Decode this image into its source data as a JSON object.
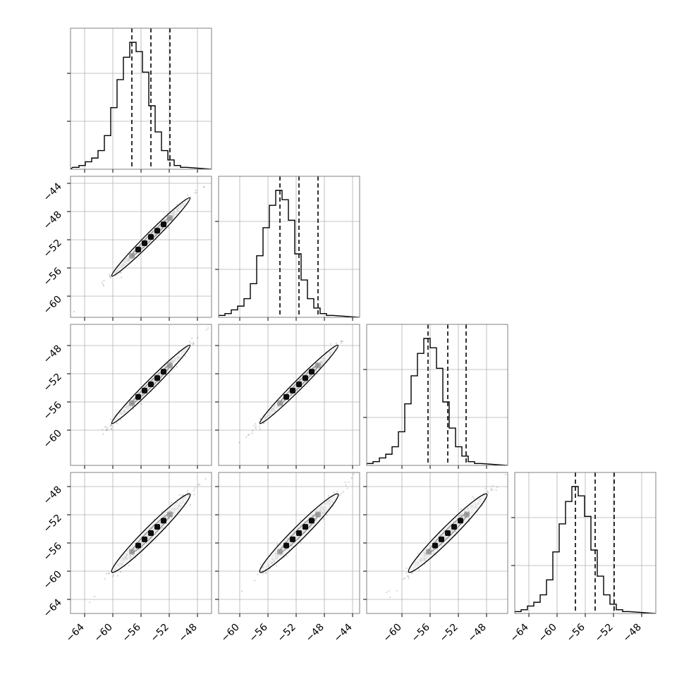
{
  "chart_data": {
    "type": "corner",
    "parameters": 4,
    "grid": true,
    "histograms": [
      {
        "index": 0,
        "quantiles": [
          -57.3,
          -54.6,
          -51.9
        ],
        "bin_edges_start": -65.7,
        "bin_width": 0.9,
        "counts": [
          1,
          2,
          4,
          6,
          10,
          18,
          33,
          48,
          60,
          68,
          63,
          52,
          34,
          20,
          10,
          5,
          2,
          1
        ]
      },
      {
        "index": 1,
        "quantiles": [
          -54.3,
          -51.6,
          -48.9
        ],
        "bin_edges_start": -63.0,
        "bin_width": 0.9,
        "counts": [
          1,
          2,
          4,
          6,
          10,
          18,
          33,
          48,
          60,
          68,
          63,
          52,
          34,
          20,
          10,
          5,
          2,
          1
        ]
      },
      {
        "index": 2,
        "quantiles": [
          -56.3,
          -53.5,
          -50.9
        ],
        "bin_edges_start": -65.0,
        "bin_width": 0.9,
        "counts": [
          1,
          2,
          4,
          6,
          10,
          18,
          33,
          48,
          60,
          68,
          63,
          52,
          34,
          20,
          10,
          5,
          2,
          1
        ]
      },
      {
        "index": 3,
        "quantiles": [
          -57.4,
          -54.6,
          -51.9
        ],
        "bin_edges_start": -66.0,
        "bin_width": 0.9,
        "counts": [
          1,
          2,
          4,
          6,
          10,
          18,
          33,
          48,
          60,
          68,
          63,
          52,
          34,
          20,
          10,
          5,
          2,
          1
        ]
      }
    ],
    "ranges": [
      [
        -66,
        -46
      ],
      [
        -63,
        -43
      ],
      [
        -65,
        -45
      ],
      [
        -66,
        -46
      ]
    ],
    "x_ticks": [
      [
        "−64",
        "−60",
        "−56",
        "−52",
        "−48"
      ],
      [
        "−60",
        "−56",
        "−52",
        "−48",
        "−44"
      ],
      [
        "−60",
        "−56",
        "−52",
        "−48"
      ],
      [
        "−64",
        "−60",
        "−56",
        "−52",
        "−48"
      ]
    ],
    "x_tick_values": [
      [
        -64,
        -60,
        -56,
        -52,
        -48
      ],
      [
        -60,
        -56,
        -52,
        -48,
        -44
      ],
      [
        -60,
        -56,
        -52,
        -48
      ],
      [
        -64,
        -60,
        -56,
        -52,
        -48
      ]
    ],
    "y_ticks": [
      null,
      [
        "−44",
        "−48",
        "−52",
        "−56",
        "−60"
      ],
      [
        "−48",
        "−52",
        "−56",
        "−60"
      ],
      [
        "−48",
        "−52",
        "−56",
        "−60",
        "−64"
      ]
    ],
    "y_tick_values": [
      null,
      [
        -44,
        -48,
        -52,
        -56,
        -60
      ],
      [
        -48,
        -52,
        -56,
        -60
      ],
      [
        -48,
        -52,
        -56,
        -60,
        -64
      ]
    ],
    "correlations": [
      [
        1,
        0.99,
        0.99,
        0.98
      ],
      [
        0.99,
        1,
        0.99,
        0.98
      ],
      [
        0.99,
        0.99,
        1,
        0.98
      ],
      [
        0.98,
        0.98,
        0.98,
        1
      ]
    ],
    "contour_level_sigma": [
      1.0,
      2.0
    ]
  }
}
